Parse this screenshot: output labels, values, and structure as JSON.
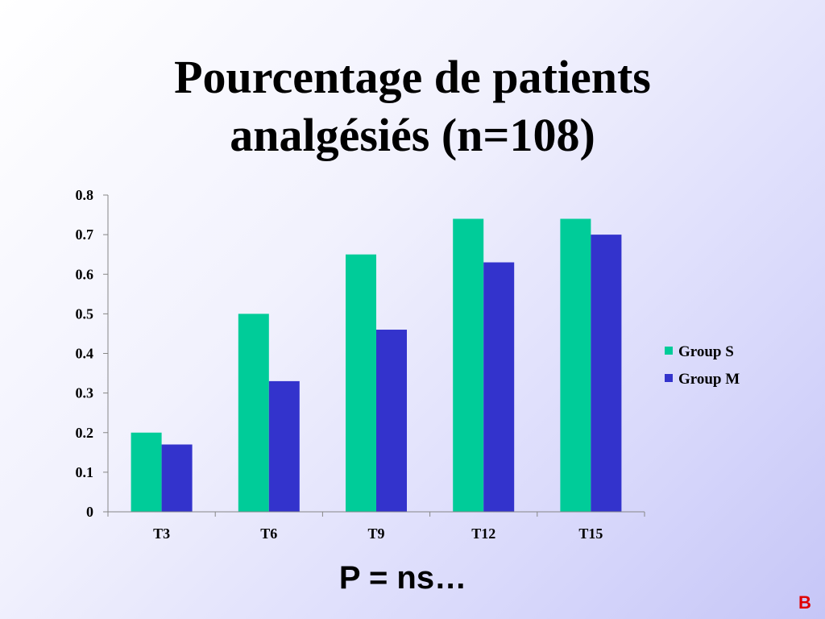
{
  "slide": {
    "title_line1": "Pourcentage de patients",
    "title_line2": "analgésiés (n=108)",
    "footnote": "P = ns…",
    "corner_mark": "B"
  },
  "chart_data": {
    "type": "bar",
    "categories": [
      "T3",
      "T6",
      "T9",
      "T12",
      "T15"
    ],
    "series": [
      {
        "name": "Group S",
        "values": [
          0.2,
          0.5,
          0.65,
          0.74,
          0.74
        ],
        "color": "#00cc99"
      },
      {
        "name": "Group M",
        "values": [
          0.17,
          0.33,
          0.46,
          0.63,
          0.7
        ],
        "color": "#3333cc"
      }
    ],
    "ylim": [
      0,
      0.8
    ],
    "yticks": [
      "0",
      "0.1",
      "0.2",
      "0.3",
      "0.4",
      "0.5",
      "0.6",
      "0.7",
      "0.8"
    ],
    "grid": false,
    "legend_position": "right"
  }
}
